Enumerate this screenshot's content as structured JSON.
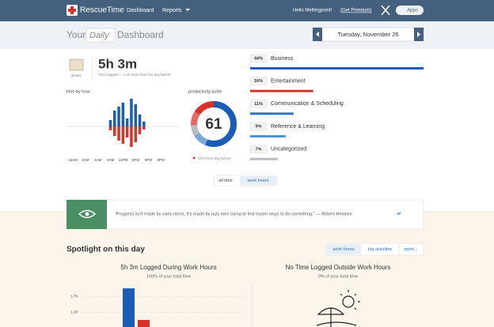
{
  "header": {
    "logo": "RescueTime",
    "nav": [
      "Dashboard",
      "Reports"
    ],
    "greeting": "Hello Meltingpoint!",
    "premium": "(Get Premium)",
    "apps": "Apps"
  },
  "subheader": {
    "prefix": "Your",
    "period": "Daily",
    "suffix": "Dashboard",
    "date": "Tuesday, November 26"
  },
  "summary": {
    "details": "details",
    "total": "5h 3m",
    "note": "Time logged — 1.2h more than the day before"
  },
  "time_by_hour": {
    "label": "time by hour",
    "hour_labels": [
      "12AM",
      "3AM",
      "6AM",
      "9AM",
      "12PM",
      "3PM",
      "6PM",
      "9PM"
    ],
    "productive": [
      0,
      0,
      0,
      0,
      0,
      0,
      0,
      0,
      0,
      8,
      20,
      25,
      30,
      10,
      35,
      28,
      15,
      6,
      0,
      0,
      0,
      0,
      0,
      0
    ],
    "distracting": [
      0,
      0,
      0,
      0,
      0,
      0,
      0,
      0,
      0,
      5,
      12,
      18,
      22,
      14,
      26,
      20,
      10,
      4,
      0,
      0,
      0,
      0,
      0,
      0
    ]
  },
  "pulse": {
    "label": "productivity pulse",
    "score": "61",
    "change": "12% from day before"
  },
  "categories": [
    {
      "label": "44%",
      "value": 44,
      "name": "Business",
      "color": "#1b5cb8"
    },
    {
      "label": "16%",
      "value": 16,
      "name": "Entertainment",
      "color": "#d9322b"
    },
    {
      "label": "11%",
      "value": 11,
      "name": "Communication & Scheduling",
      "color": "#2f6fc4"
    },
    {
      "label": "9%",
      "value": 9,
      "name": "Reference & Learning",
      "color": "#4a8fd9"
    },
    {
      "label": "7%",
      "value": 7,
      "name": "Uncategorized",
      "color": "#b9bdc3"
    }
  ],
  "toggle": [
    "all time",
    "work hours"
  ],
  "quote": "“Progress isn't made by early risers. It's made by lazy men trying to find easier ways to do something.” — Robert Heinlein",
  "spotlight": {
    "title": "Spotlight on this day",
    "tabs": [
      "work hours",
      "top activities",
      "more..."
    ],
    "left": {
      "title": "5h 3m Logged During Work Hours",
      "subtitle": "100% of your total time",
      "yticks": [
        {
          "value": 1.7,
          "label": "1.7h"
        },
        {
          "value": 1.1,
          "label": "1.1h"
        }
      ],
      "values": [
        2.0,
        0.8
      ],
      "colors": [
        "#1b5cb8",
        "#d9322b"
      ]
    },
    "right": {
      "title": "No Time Logged Outside Work Hours",
      "subtitle": "0% of your total time"
    }
  }
}
